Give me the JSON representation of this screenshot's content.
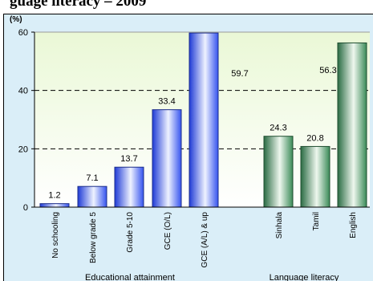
{
  "page": {
    "title_fragment": "guage literacy – 2009"
  },
  "chart_data": {
    "type": "bar",
    "unit_label": "(%)",
    "ylim": [
      0,
      60
    ],
    "y_ticks": [
      0,
      20,
      40,
      60
    ],
    "grid": "dashed horizontal",
    "groups": [
      {
        "name": "Educational attainment",
        "color": "#3a5bff",
        "categories": [
          "No schooling",
          "Below grade 5",
          "Grade 5-10",
          "GCE (O/L)",
          "GCE (A/L) & up"
        ],
        "values": [
          1.2,
          7.1,
          13.7,
          33.4,
          59.7
        ],
        "labels": [
          "1.2",
          "7.1",
          "13.7",
          "33.4",
          "59.7"
        ]
      },
      {
        "name": "Language literacy",
        "color": "#2e7d4f",
        "categories": [
          "Sinhala",
          "Tamil",
          "English"
        ],
        "values": [
          24.3,
          20.8,
          56.3
        ],
        "labels": [
          "24.3",
          "20.8",
          "56.3"
        ]
      }
    ]
  }
}
